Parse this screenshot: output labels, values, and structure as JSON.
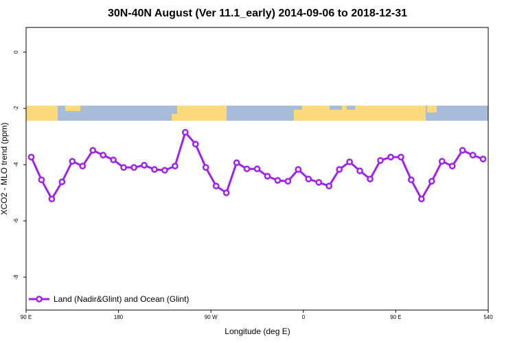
{
  "chart_data": {
    "type": "line",
    "title": "30N-40N August (Ver 11.1_early)   2014-09-06 to 2018-12-31",
    "x_label": "Longitude (deg E)",
    "y_label": "XCO2 - MLO trend (ppm)",
    "x": [
      95,
      105,
      115,
      125,
      135,
      145,
      155,
      165,
      175,
      185,
      195,
      205,
      215,
      225,
      235,
      245,
      255,
      265,
      275,
      285,
      295,
      305,
      315,
      325,
      335,
      345,
      355,
      365,
      375,
      385,
      395,
      405,
      415,
      425,
      435,
      445,
      455,
      465,
      475,
      485,
      495,
      505,
      515,
      525,
      535
    ],
    "series": [
      {
        "name": "Land (Nadir&Glint) and Ocean (Glint)",
        "color": "#a020f0",
        "values": [
          -3.73,
          -4.54,
          -5.22,
          -4.61,
          -3.88,
          -4.05,
          -3.49,
          -3.66,
          -3.83,
          -4.1,
          -4.1,
          -4.02,
          -4.17,
          -4.2,
          -4.05,
          -2.85,
          -3.27,
          -4.1,
          -4.76,
          -5.0,
          -3.93,
          -4.15,
          -4.15,
          -4.41,
          -4.56,
          -4.59,
          -4.17,
          -4.51,
          -4.63,
          -4.76,
          -4.17,
          -3.9,
          -4.22,
          -4.51,
          -3.85,
          -3.73,
          -3.73,
          -4.54,
          -5.22,
          -4.59,
          -3.88,
          -4.05,
          -3.49,
          -3.66,
          -3.8
        ]
      }
    ],
    "xlim": [
      90,
      540
    ],
    "xticks": [
      {
        "value": 90,
        "label": "90 E"
      },
      180,
      {
        "value": 270,
        "label": "90 W"
      },
      {
        "value": 360,
        "label": "0"
      },
      {
        "value": 450,
        "label": "90 E"
      },
      540
    ],
    "ylim": [
      -9.17,
      0.88
    ],
    "yticks": [
      -8,
      -6,
      -4,
      -2,
      0
    ],
    "legend": "bottom-left"
  }
}
